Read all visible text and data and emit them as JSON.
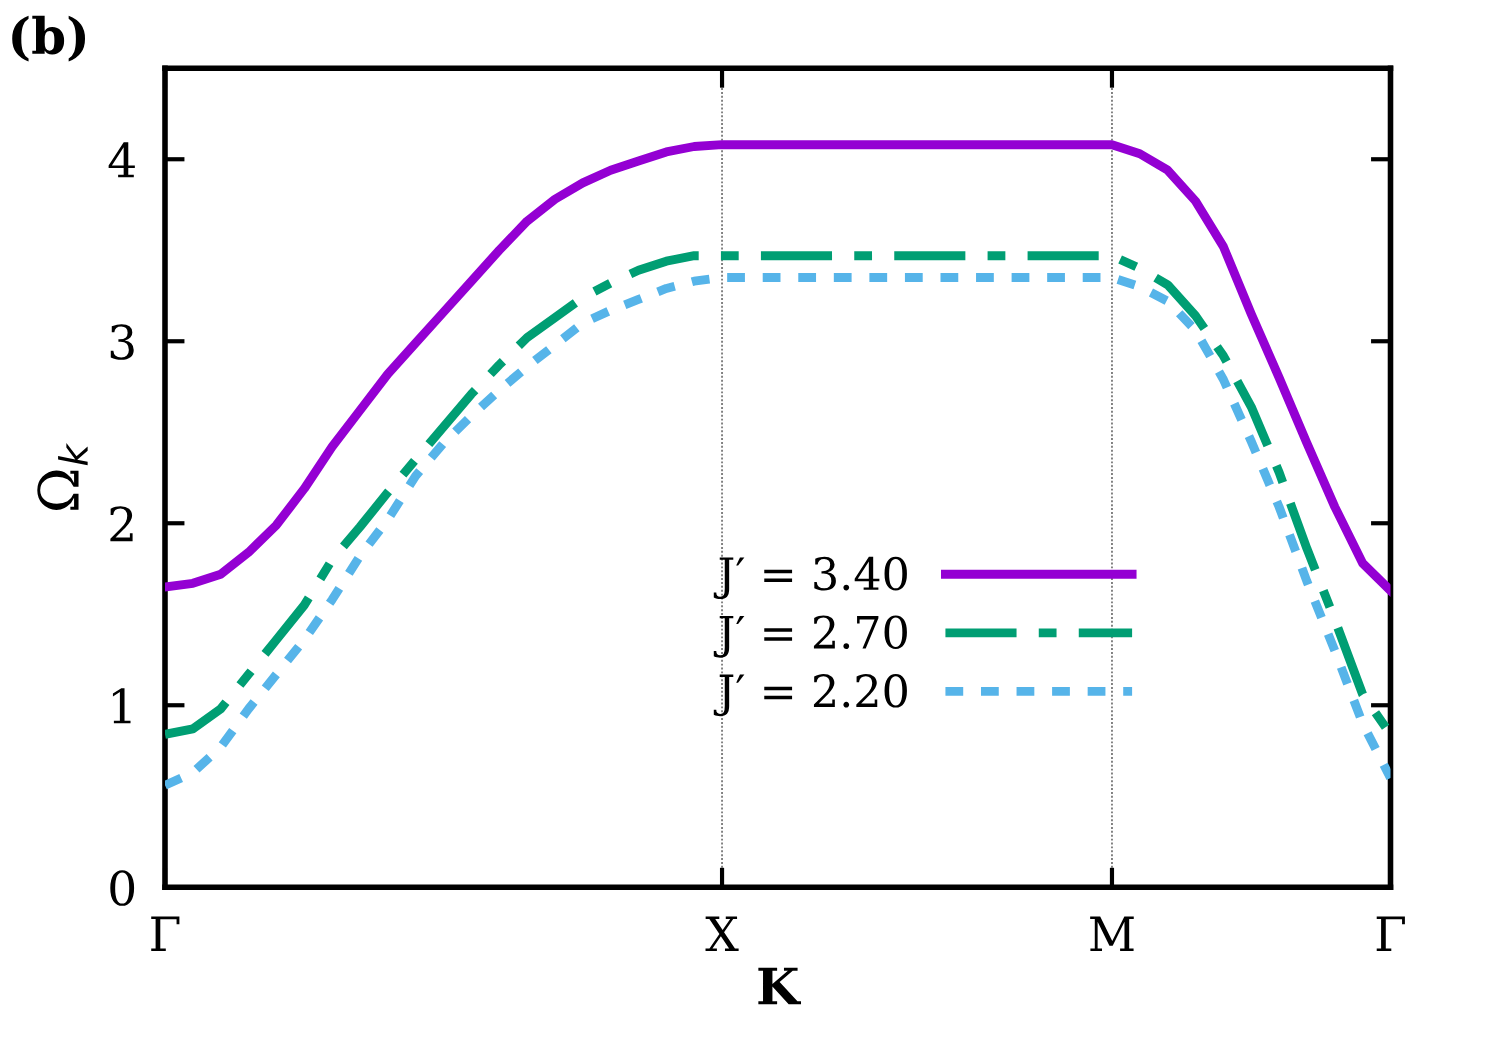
{
  "chart_data": {
    "type": "line",
    "title": "(b)",
    "xlabel": "K",
    "ylabel": "Ω$_{k}$",
    "categories": [
      "Γ",
      null,
      null,
      null,
      null,
      null,
      null,
      null,
      null,
      null,
      null,
      null,
      null,
      null,
      null,
      null,
      null,
      null,
      null,
      null,
      "X",
      null,
      null,
      null,
      null,
      null,
      null,
      null,
      null,
      null,
      null,
      null,
      null,
      null,
      "M",
      null,
      null,
      null,
      null,
      null,
      null,
      null,
      null,
      null,
      "Γ"
    ],
    "ylim": [
      0,
      4.5
    ],
    "yticks": [
      0,
      1,
      2,
      3,
      4
    ],
    "grid": "x",
    "legend": "bottom",
    "series": [
      {
        "name": "J′ = 3.40",
        "color": "#9400d3",
        "line_style": "solid",
        "values": [
          1.65,
          1.67,
          1.72,
          1.84,
          1.99,
          2.19,
          2.42,
          2.62,
          2.82,
          2.99,
          3.16,
          3.33,
          3.5,
          3.66,
          3.78,
          3.87,
          3.94,
          3.99,
          4.04,
          4.07,
          4.08,
          4.08,
          4.08,
          4.08,
          4.08,
          4.08,
          4.08,
          4.08,
          4.08,
          4.08,
          4.08,
          4.08,
          4.08,
          4.08,
          4.08,
          4.03,
          3.94,
          3.77,
          3.52,
          3.15,
          2.8,
          2.44,
          2.09,
          1.78,
          1.63
        ]
      },
      {
        "name": "J′ = 2.70",
        "color": "#009e73",
        "line_style": "dashed",
        "values": [
          0.84,
          0.87,
          0.98,
          1.17,
          1.36,
          1.55,
          1.8,
          1.98,
          2.17,
          2.35,
          2.53,
          2.71,
          2.87,
          3.02,
          3.13,
          3.24,
          3.32,
          3.39,
          3.44,
          3.47,
          3.47,
          3.47,
          3.47,
          3.47,
          3.47,
          3.47,
          3.47,
          3.47,
          3.47,
          3.47,
          3.47,
          3.47,
          3.47,
          3.47,
          3.47,
          3.4,
          3.31,
          3.14,
          2.92,
          2.64,
          2.28,
          1.86,
          1.47,
          1.06,
          0.84
        ]
      },
      {
        "name": "J′ = 2.20",
        "color": "#56b4e9",
        "line_style": "dotted",
        "values": [
          0.56,
          0.63,
          0.77,
          0.98,
          1.17,
          1.36,
          1.58,
          1.82,
          2.02,
          2.26,
          2.44,
          2.59,
          2.73,
          2.86,
          2.98,
          3.1,
          3.17,
          3.23,
          3.29,
          3.33,
          3.35,
          3.35,
          3.35,
          3.35,
          3.35,
          3.35,
          3.35,
          3.35,
          3.35,
          3.35,
          3.35,
          3.35,
          3.35,
          3.35,
          3.35,
          3.3,
          3.22,
          3.06,
          2.79,
          2.45,
          2.09,
          1.68,
          1.3,
          0.9,
          0.6
        ]
      }
    ]
  }
}
